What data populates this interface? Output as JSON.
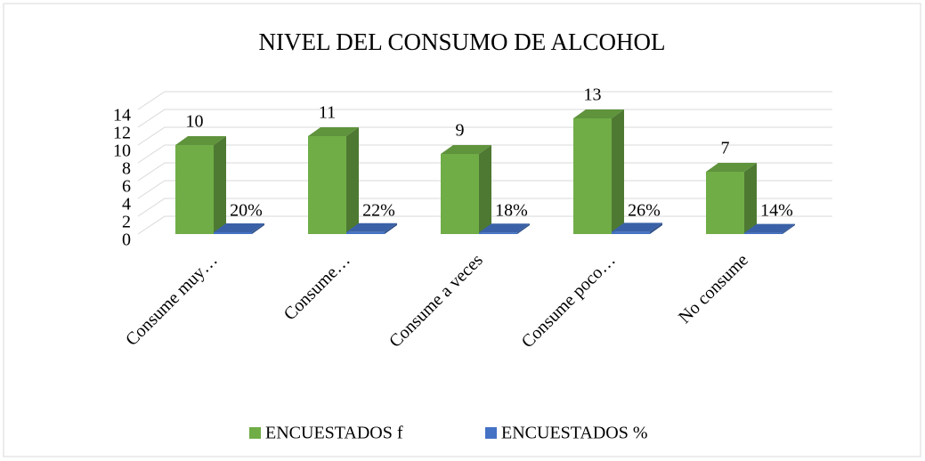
{
  "chart_data": {
    "type": "bar3d",
    "title": "NIVEL DEL CONSUMO DE ALCOHOL",
    "categories": [
      "Consume muy…",
      "Consume…",
      "Consume a veces",
      "Consume poco…",
      "No consume"
    ],
    "series": [
      {
        "name": "ENCUESTADOS f",
        "color": "#70ad47",
        "values": [
          10,
          11,
          9,
          13,
          7
        ]
      },
      {
        "name": "ENCUESTADOS %",
        "color": "#4472c4",
        "values": [
          0.2,
          0.22,
          0.18,
          0.26,
          0.14
        ],
        "value_labels": [
          "20%",
          "22%",
          "18%",
          "26%",
          "14%"
        ]
      }
    ],
    "ylim": [
      0,
      14
    ],
    "yticks": [
      0,
      2,
      4,
      6,
      8,
      10,
      12,
      14
    ],
    "grid": true,
    "legend": "bottom"
  }
}
